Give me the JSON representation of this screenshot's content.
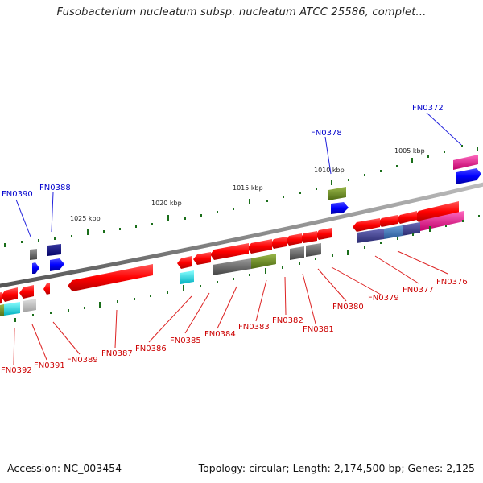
{
  "header": {
    "title": "Fusobacterium nucleatum subsp. nucleatum ATCC 25586, complet..."
  },
  "footer": {
    "accession": "Accession: NC_003454",
    "summary": "Topology: circular; Length: 2,174,500 bp; Genes: 2,125"
  },
  "scale": {
    "ticks": [
      {
        "label": "1005 kbp"
      },
      {
        "label": "1010 kbp"
      },
      {
        "label": "1015 kbp"
      },
      {
        "label": "1020 kbp"
      },
      {
        "label": "1025 kbp"
      }
    ]
  },
  "genes_forward_labels": [
    {
      "id": "FN0372",
      "color": "#0000cc"
    },
    {
      "id": "FN0378",
      "color": "#0000cc"
    },
    {
      "id": "FN0388",
      "color": "#0000cc"
    },
    {
      "id": "FN0390",
      "color": "#0000cc"
    }
  ],
  "genes_reverse_labels": [
    {
      "id": "FN0376",
      "color": "#cc0000"
    },
    {
      "id": "FN0377",
      "color": "#cc0000"
    },
    {
      "id": "FN0379",
      "color": "#cc0000"
    },
    {
      "id": "FN0380",
      "color": "#cc0000"
    },
    {
      "id": "FN0381",
      "color": "#cc0000"
    },
    {
      "id": "FN0382",
      "color": "#cc0000"
    },
    {
      "id": "FN0383",
      "color": "#cc0000"
    },
    {
      "id": "FN0384",
      "color": "#cc0000"
    },
    {
      "id": "FN0385",
      "color": "#cc0000"
    },
    {
      "id": "FN0386",
      "color": "#cc0000"
    },
    {
      "id": "FN0387",
      "color": "#cc0000"
    },
    {
      "id": "FN0389",
      "color": "#cc0000"
    },
    {
      "id": "FN0391",
      "color": "#cc0000"
    },
    {
      "id": "FN0392",
      "color": "#cc0000"
    }
  ],
  "colors": {
    "backbone": "#8a8a8a",
    "forward_strand": "#0000ff",
    "reverse_strand": "#ff0000",
    "tick_green": "#1a6e1a"
  }
}
